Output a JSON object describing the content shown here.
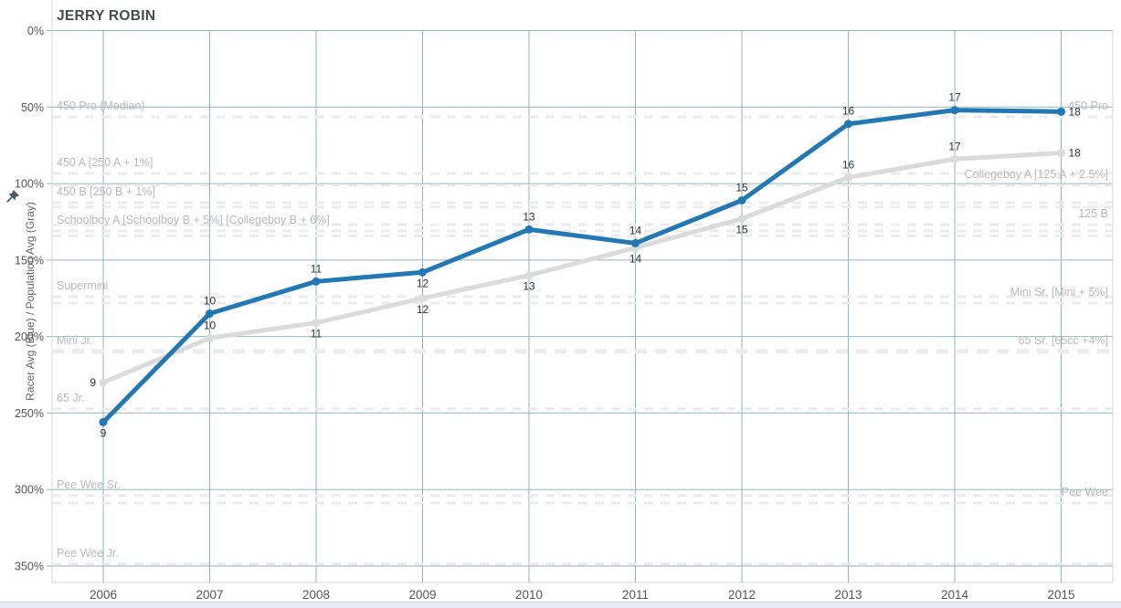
{
  "title": "JERRY ROBIN",
  "icons": {
    "pin": "pushpin-icon"
  },
  "colors": {
    "racer_line": "#2277b5",
    "population_line": "#dbdbdb",
    "gridline": "#8fb6bf",
    "reference_line": "#ebebeb",
    "reference_label": "#b9b9b9",
    "tick_label": "#555555",
    "data_label": "#333333",
    "title_text": "#474b50",
    "axis_spine": "#d6d6d6",
    "pin": "#4e5b6e"
  },
  "chart_data": {
    "type": "line",
    "title": "JERRY ROBIN",
    "ylabel": "Racer Avg (Blue) / Population Avg (Gray)",
    "y_axis": {
      "unit": "%",
      "min": 0,
      "max": 350,
      "inverted": true,
      "tick_step": 50
    },
    "y_tick_labels": [
      "0%",
      "50%",
      "100%",
      "150%",
      "200%",
      "250%",
      "300%",
      "350%"
    ],
    "x_tick_labels": [
      "2006",
      "2007",
      "2008",
      "2009",
      "2010",
      "2011",
      "2012",
      "2013",
      "2014",
      "2015"
    ],
    "grid": true,
    "series": [
      {
        "id": "population",
        "name": "Population Avg (Gray)",
        "color": "#dbdbdb",
        "values_pct": [
          230,
          201,
          191,
          175,
          160,
          142,
          123,
          96,
          84,
          80
        ],
        "point_labels": [
          "9",
          "10",
          "11",
          "12",
          "13",
          "14",
          "15",
          "16",
          "17",
          "18"
        ],
        "label_side": [
          "left",
          "above",
          "below",
          "below",
          "below",
          "below",
          "below",
          "above",
          "above",
          "right"
        ]
      },
      {
        "id": "racer",
        "name": "Racer Avg (Blue)",
        "color": "#2277b5",
        "values_pct": [
          256,
          185,
          164,
          158,
          130,
          139,
          111,
          61,
          52,
          53
        ],
        "point_labels": [
          "9",
          "10",
          "11",
          "12",
          "13",
          "14",
          "15",
          "16",
          "17",
          "18"
        ],
        "label_side": [
          "below",
          "above",
          "above",
          "below",
          "above",
          "above",
          "above",
          "above",
          "above",
          "right"
        ]
      }
    ],
    "reference_lines": [
      {
        "pct": 56.4,
        "left": "450 Pro (Median)",
        "right": "450 Pro"
      },
      {
        "pct": 93.4,
        "left": "450 A [250 A + 1%]"
      },
      {
        "pct": 101.1,
        "right": "Collegeboy A [125 A + 2.5%]"
      },
      {
        "pct": 112.5,
        "left": "450 B [250 B + 1%]"
      },
      {
        "pct": 115.4
      },
      {
        "pct": 126.8,
        "right": "125 B"
      },
      {
        "pct": 131.0,
        "left": "Schoolboy A [Schoolboy B + 5%] [Collegeboy B + 6%]"
      },
      {
        "pct": 134.2
      },
      {
        "pct": 173.9,
        "left": "Supermini"
      },
      {
        "pct": 178.1,
        "right": "Mini Sr. [Mini + 5%]"
      },
      {
        "pct": 209.7,
        "left": "Mini Jr.",
        "right": "65 Sr. [65cc +4%]",
        "thick": true
      },
      {
        "pct": 247.3,
        "left": "65 Jr."
      },
      {
        "pct": 304.0,
        "left": "Pee Wee Sr."
      },
      {
        "pct": 308.8,
        "right": "Pee Wee"
      },
      {
        "pct": 348.7,
        "left": "Pee Wee Jr."
      }
    ]
  }
}
